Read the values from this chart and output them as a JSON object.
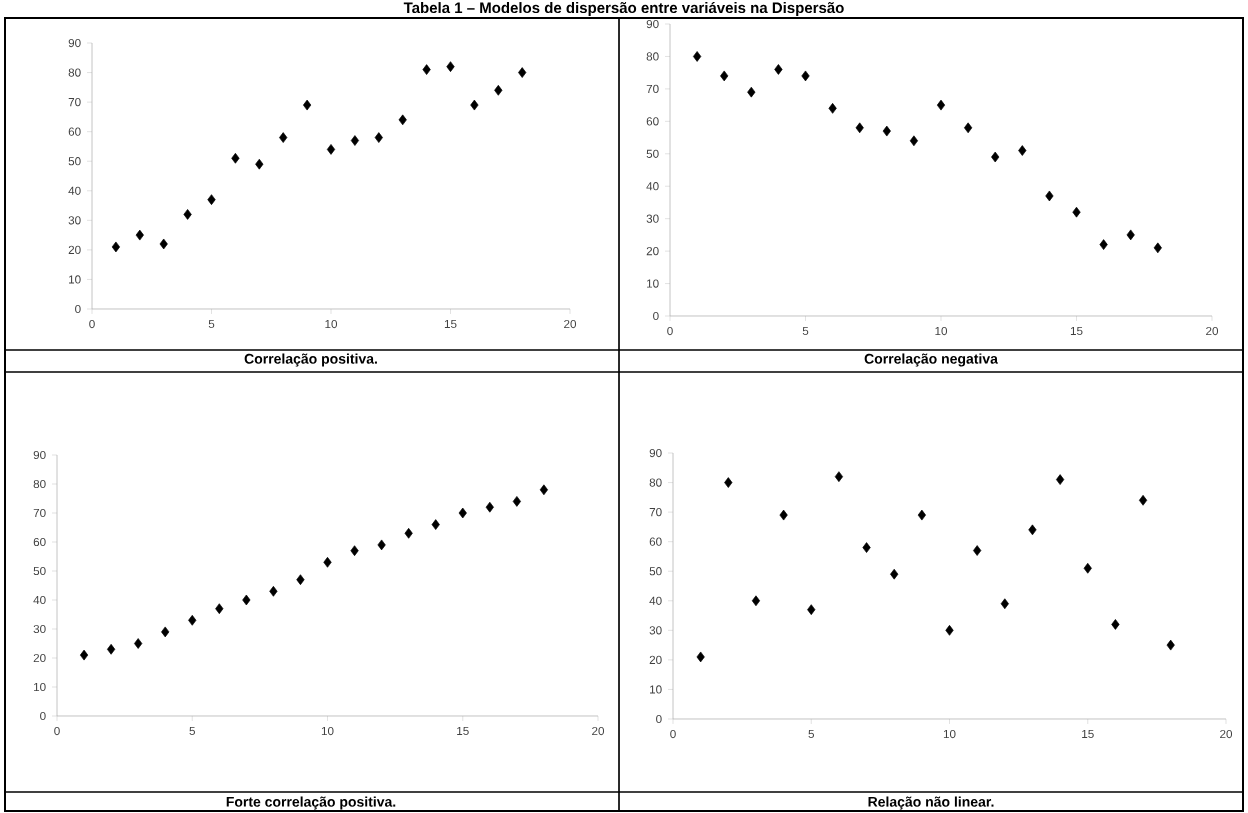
{
  "chart_data": [
    {
      "type": "scatter",
      "title": "Correlação positiva.",
      "annotations": [
        "Tabela 1 – Modelos de dispersão entre variáveis na Dispersão"
      ],
      "marker": "diamond",
      "grid": false,
      "xlim": [
        0,
        20
      ],
      "ylim": [
        0,
        90
      ],
      "xticks": [
        0,
        5,
        10,
        15,
        20
      ],
      "yticks": [
        0,
        10,
        20,
        30,
        40,
        50,
        60,
        70,
        80,
        90
      ],
      "x": [
        1,
        2,
        3,
        4,
        5,
        6,
        7,
        8,
        9,
        10,
        11,
        12,
        13,
        14,
        15,
        16,
        17,
        18
      ],
      "series": [
        {
          "color": "#000000",
          "values": [
            21,
            25,
            22,
            32,
            37,
            51,
            49,
            58,
            69,
            54,
            57,
            58,
            64,
            81,
            82,
            69,
            74,
            80
          ]
        }
      ]
    },
    {
      "type": "scatter",
      "title": "Correlação negativa",
      "marker": "diamond",
      "grid": false,
      "xlim": [
        0,
        20
      ],
      "ylim": [
        0,
        90
      ],
      "xticks": [
        0,
        5,
        10,
        15,
        20
      ],
      "yticks": [
        0,
        10,
        20,
        30,
        40,
        50,
        60,
        70,
        80,
        90
      ],
      "x": [
        1,
        2,
        3,
        4,
        5,
        6,
        7,
        8,
        9,
        10,
        11,
        12,
        13,
        14,
        15,
        16,
        17,
        18
      ],
      "series": [
        {
          "color": "#000000",
          "values": [
            80,
            74,
            69,
            76,
            74,
            64,
            58,
            57,
            54,
            65,
            58,
            49,
            51,
            37,
            32,
            22,
            25,
            21
          ]
        }
      ]
    },
    {
      "type": "scatter",
      "title": "Forte correlação positiva.",
      "marker": "diamond",
      "grid": false,
      "xlim": [
        0,
        20
      ],
      "ylim": [
        0,
        90
      ],
      "xticks": [
        0,
        5,
        10,
        15,
        20
      ],
      "yticks": [
        0,
        10,
        20,
        30,
        40,
        50,
        60,
        70,
        80,
        90
      ],
      "x": [
        1,
        2,
        3,
        4,
        5,
        6,
        7,
        8,
        9,
        10,
        11,
        12,
        13,
        14,
        15,
        16,
        17,
        18
      ],
      "series": [
        {
          "color": "#000000",
          "values": [
            21,
            23,
            25,
            29,
            33,
            37,
            40,
            43,
            47,
            53,
            57,
            59,
            63,
            66,
            70,
            72,
            74,
            78
          ]
        }
      ]
    },
    {
      "type": "scatter",
      "title": "Relação não linear.",
      "marker": "diamond",
      "grid": false,
      "xlim": [
        0,
        20
      ],
      "ylim": [
        0,
        90
      ],
      "xticks": [
        0,
        5,
        10,
        15,
        20
      ],
      "yticks": [
        0,
        10,
        20,
        30,
        40,
        50,
        60,
        70,
        80,
        90
      ],
      "x": [
        1,
        2,
        3,
        4,
        5,
        6,
        7,
        8,
        9,
        10,
        11,
        12,
        13,
        14,
        15,
        16,
        17,
        18
      ],
      "series": [
        {
          "color": "#000000",
          "values": [
            21,
            80,
            40,
            69,
            37,
            82,
            58,
            49,
            69,
            30,
            57,
            39,
            64,
            81,
            51,
            32,
            74,
            25
          ]
        }
      ]
    }
  ]
}
